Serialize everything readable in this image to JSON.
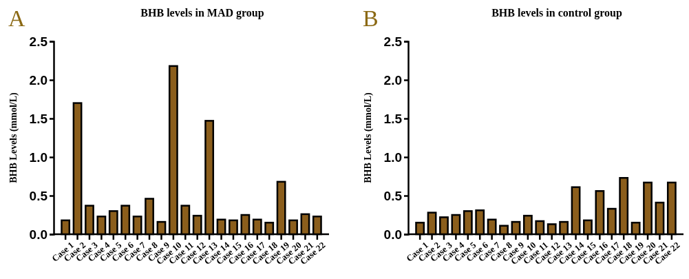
{
  "chart_data": [
    {
      "type": "bar",
      "title": "BHB levels in MAD group",
      "ylabel": "BHB Levels (mmol/L)",
      "annotations": [
        "A"
      ],
      "categories": [
        "Case 1",
        "Case 2",
        "Case 3",
        "Case 4",
        "Case 5",
        "Case 6",
        "Case 7",
        "Case 8",
        "Case 9",
        "Case 10",
        "Case 11",
        "Case 12",
        "Case 13",
        "Case 14",
        "Case 15",
        "Case 16",
        "Case 17",
        "Case 18",
        "Case 19",
        "Case 20",
        "Case 21",
        "Case 22"
      ],
      "values": [
        0.18,
        1.7,
        0.37,
        0.23,
        0.3,
        0.37,
        0.23,
        0.46,
        0.16,
        2.18,
        0.37,
        0.24,
        1.47,
        0.19,
        0.18,
        0.25,
        0.19,
        0.15,
        0.68,
        0.18,
        0.26,
        0.23
      ],
      "color": "#8b5e1c",
      "ylim": [
        0,
        2.5
      ],
      "yticks": [
        {
          "value": 0,
          "label": "0.0"
        },
        {
          "value": 0.5,
          "label": "0.5"
        },
        {
          "value": 1,
          "label": "1.0"
        },
        {
          "value": 1.5,
          "label": "1.5"
        },
        {
          "value": 2,
          "label": "2.0"
        },
        {
          "value": 2.5,
          "label": "2.5"
        }
      ],
      "grid": false
    },
    {
      "type": "bar",
      "title": "BHB levels in control group",
      "ylabel": "BHB Levels (mmol/L)",
      "annotations": [
        "B"
      ],
      "categories": [
        "Case 1",
        "Case 2",
        "Case 3",
        "Case 4",
        "Case 5",
        "Case 6",
        "Case 7",
        "Case 8",
        "Case 9",
        "Case 10",
        "Case 11",
        "Case 12",
        "Case 13",
        "Case 14",
        "Case 15",
        "Case 16",
        "Case 17",
        "Case 18",
        "Case 19",
        "Case 20",
        "Case 21",
        "Case 22"
      ],
      "values": [
        0.15,
        0.28,
        0.22,
        0.25,
        0.3,
        0.31,
        0.19,
        0.11,
        0.16,
        0.24,
        0.17,
        0.13,
        0.16,
        0.61,
        0.18,
        0.56,
        0.33,
        0.73,
        0.15,
        0.67,
        0.41,
        0.67
      ],
      "color": "#8b5e1c",
      "ylim": [
        0,
        2.5
      ],
      "yticks": [
        {
          "value": 0,
          "label": "0.0"
        },
        {
          "value": 0.5,
          "label": "0.5"
        },
        {
          "value": 1,
          "label": "1.0"
        },
        {
          "value": 1.5,
          "label": "1.5"
        },
        {
          "value": 2,
          "label": "2.0"
        },
        {
          "value": 2.5,
          "label": "2.5"
        }
      ],
      "grid": false
    }
  ]
}
